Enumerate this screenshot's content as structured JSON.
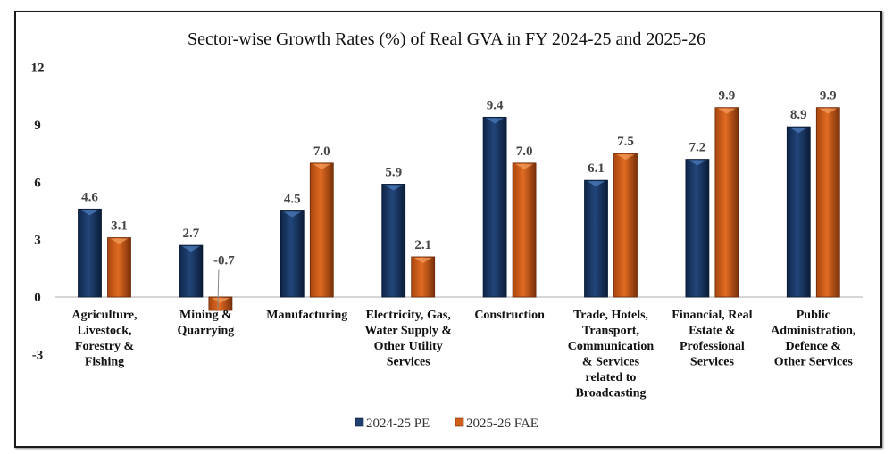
{
  "chart_data": {
    "type": "bar",
    "title": "Sector-wise Growth Rates (%) of Real GVA in FY 2024-25 and 2025-26",
    "xlabel": "",
    "ylabel": "",
    "ylim": [
      -3,
      12
    ],
    "yticks": [
      12,
      9,
      6,
      3,
      0,
      -3
    ],
    "grid": false,
    "legend_position": "bottom",
    "categories": [
      [
        "Agriculture,",
        "Livestock,",
        "Forestry &",
        "Fishing"
      ],
      [
        "Mining &",
        "Quarrying"
      ],
      [
        "Manufacturing"
      ],
      [
        "Electricity, Gas,",
        "Water Supply &",
        "Other Utility",
        "Services"
      ],
      [
        "Construction"
      ],
      [
        "Trade, Hotels,",
        "Transport,",
        "Communication",
        "& Services",
        "related to",
        "Broadcasting"
      ],
      [
        "Financial, Real",
        "Estate &",
        "Professional",
        "Services"
      ],
      [
        "Public",
        "Administration,",
        "Defence &",
        "Other Services"
      ]
    ],
    "series": [
      {
        "name": "2024-25 PE",
        "color": "#1f3f6e",
        "values": [
          4.6,
          2.7,
          4.5,
          5.9,
          9.4,
          6.1,
          7.2,
          8.9
        ],
        "labels": [
          "4.6",
          "2.7",
          "4.5",
          "5.9",
          "9.4",
          "6.1",
          "7.2",
          "8.9"
        ]
      },
      {
        "name": "2025-26 FAE",
        "color": "#d2601c",
        "values": [
          3.1,
          -0.7,
          7.0,
          2.1,
          7.0,
          7.5,
          9.9,
          9.9
        ],
        "labels": [
          "3.1",
          "-0.7",
          "7.0",
          "2.1",
          "7.0",
          "7.5",
          "9.9",
          "9.9"
        ]
      }
    ]
  }
}
